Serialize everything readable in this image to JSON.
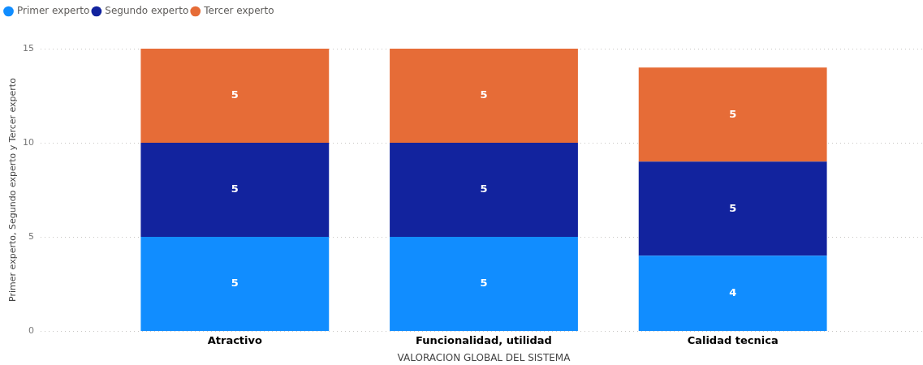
{
  "chart_data": {
    "type": "bar",
    "stacked": true,
    "xlabel": "VALORACION GLOBAL DEL SISTEMA",
    "ylabel": "Primer experto, Segundo experto y Tercer experto",
    "categories": [
      "Atractivo",
      "Funcionalidad, utilidad",
      "Calidad tecnica"
    ],
    "series": [
      {
        "name": "Primer experto",
        "color": "#118dff",
        "values": [
          5,
          5,
          4
        ]
      },
      {
        "name": "Segundo experto",
        "color": "#12239e",
        "values": [
          5,
          5,
          5
        ]
      },
      {
        "name": "Tercer experto",
        "color": "#e66c37",
        "values": [
          5,
          5,
          5
        ]
      }
    ],
    "ylim": [
      0,
      15
    ],
    "yticks": [
      0,
      5,
      10,
      15
    ],
    "grid": "y",
    "legend": "top left",
    "data_labels": true
  }
}
